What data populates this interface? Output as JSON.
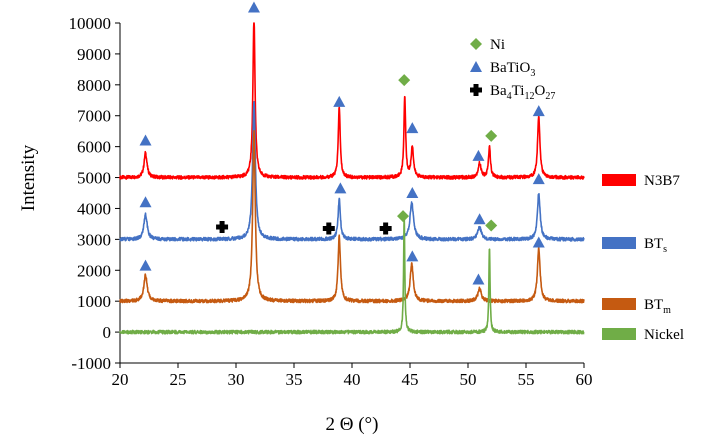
{
  "chart_data": {
    "type": "line",
    "xlabel": "2 Θ (°)",
    "ylabel": "Intensity",
    "xlim": [
      20,
      60
    ],
    "ylim": [
      -1000,
      10000
    ],
    "xticks": [
      "20",
      "25",
      "30",
      "35",
      "40",
      "45",
      "50",
      "55",
      "60"
    ],
    "yticks": [
      "-1000",
      "0",
      "1000",
      "2000",
      "3000",
      "4000",
      "5000",
      "6000",
      "7000",
      "8000",
      "9000",
      "10000"
    ],
    "grid": false,
    "legend_position": "top-right",
    "legend": [
      {
        "label": "Ni",
        "marker": "diamond",
        "color": "#70ad47"
      },
      {
        "label": "BaTiO",
        "sub": "3",
        "marker": "triangle",
        "color": "#4472c4"
      },
      {
        "label": "Ba",
        "sub": "4",
        "mid": "Ti",
        "sub2": "12",
        "tail": "O",
        "sub3": "27",
        "marker": "cross",
        "color": "#000000"
      }
    ],
    "series": [
      {
        "name": "N3B7",
        "label_main": "N3B7",
        "label_sub": "",
        "color": "#ff0000",
        "baseline": 5000,
        "peaks": [
          [
            22.2,
            800,
            0.15
          ],
          [
            31.55,
            5200,
            0.11
          ],
          [
            38.9,
            2300,
            0.1
          ],
          [
            44.55,
            2600,
            0.09
          ],
          [
            45.2,
            1000,
            0.12
          ],
          [
            51.0,
            450,
            0.15
          ],
          [
            51.85,
            1000,
            0.1
          ],
          [
            56.1,
            2000,
            0.12
          ]
        ]
      },
      {
        "name": "BTs",
        "label_main": "BT",
        "label_sub": "s",
        "color": "#4472c4",
        "baseline": 3000,
        "peaks": [
          [
            22.2,
            800,
            0.17
          ],
          [
            31.55,
            4500,
            0.14
          ],
          [
            38.9,
            1300,
            0.12
          ],
          [
            45.15,
            1200,
            0.18
          ],
          [
            51.0,
            400,
            0.18
          ],
          [
            56.1,
            1500,
            0.14
          ]
        ]
      },
      {
        "name": "BTm",
        "label_main": "BT",
        "label_sub": "m",
        "color": "#c55a11",
        "baseline": 1000,
        "peaks": [
          [
            22.2,
            850,
            0.17
          ],
          [
            31.55,
            5500,
            0.13
          ],
          [
            38.9,
            2100,
            0.12
          ],
          [
            45.15,
            1200,
            0.16
          ],
          [
            51.0,
            400,
            0.18
          ],
          [
            56.1,
            1700,
            0.14
          ]
        ]
      },
      {
        "name": "Nickel",
        "label_main": "Nickel",
        "label_sub": "",
        "color": "#70ad47",
        "baseline": 0,
        "peaks": [
          [
            44.5,
            3800,
            0.06
          ],
          [
            51.85,
            2800,
            0.06
          ]
        ]
      }
    ],
    "annotations": [
      {
        "marker": "triangle",
        "x": 22.2,
        "y": 6200
      },
      {
        "marker": "triangle",
        "x": 31.55,
        "y": 10500
      },
      {
        "marker": "triangle",
        "x": 38.9,
        "y": 7450
      },
      {
        "marker": "triangle",
        "x": 45.2,
        "y": 6600
      },
      {
        "marker": "triangle",
        "x": 50.9,
        "y": 5700
      },
      {
        "marker": "triangle",
        "x": 56.1,
        "y": 7150
      },
      {
        "marker": "diamond",
        "x": 44.5,
        "y": 8150
      },
      {
        "marker": "diamond",
        "x": 52.0,
        "y": 6350
      },
      {
        "marker": "triangle",
        "x": 22.2,
        "y": 4200
      },
      {
        "marker": "triangle",
        "x": 39.0,
        "y": 4650
      },
      {
        "marker": "triangle",
        "x": 45.2,
        "y": 4500
      },
      {
        "marker": "triangle",
        "x": 51.0,
        "y": 3650
      },
      {
        "marker": "triangle",
        "x": 56.1,
        "y": 4950
      },
      {
        "marker": "cross",
        "x": 28.8,
        "y": 3400
      },
      {
        "marker": "cross",
        "x": 38.0,
        "y": 3350
      },
      {
        "marker": "cross",
        "x": 42.9,
        "y": 3350
      },
      {
        "marker": "diamond",
        "x": 44.4,
        "y": 3750
      },
      {
        "marker": "diamond",
        "x": 52.0,
        "y": 3450
      },
      {
        "marker": "triangle",
        "x": 22.2,
        "y": 2150
      },
      {
        "marker": "triangle",
        "x": 45.2,
        "y": 2450
      },
      {
        "marker": "triangle",
        "x": 50.9,
        "y": 1700
      },
      {
        "marker": "triangle",
        "x": 56.1,
        "y": 2900
      }
    ]
  }
}
